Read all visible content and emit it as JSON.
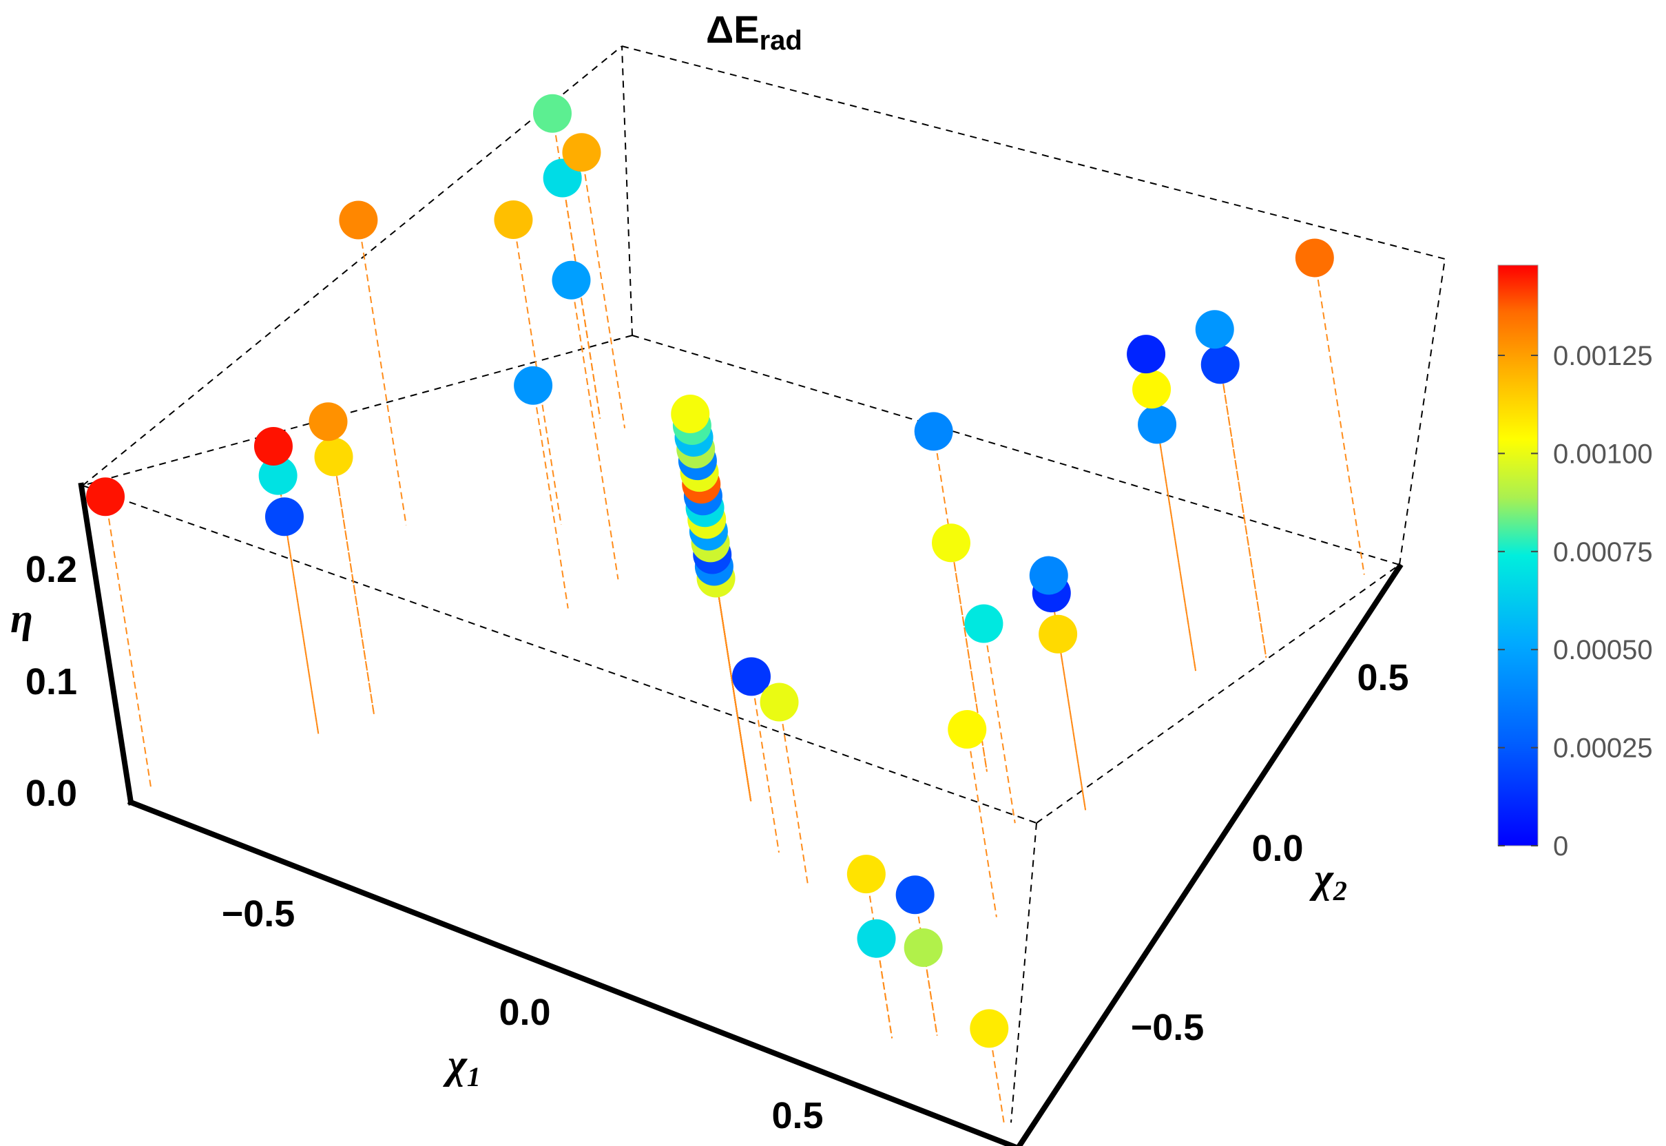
{
  "chart_data": {
    "type": "scatter",
    "title": "ΔE",
    "title_subscript": "rad",
    "xlabel": "χ",
    "xlabel_subscript": "1",
    "ylabel": "χ",
    "ylabel_subscript": "2",
    "zlabel": "η",
    "xlim": [
      -0.9,
      0.9
    ],
    "ylim": [
      -0.9,
      0.9
    ],
    "zlim": [
      0,
      0.27
    ],
    "x_ticks": [
      "−0.5",
      "0.0",
      "0.5"
    ],
    "y_ticks": [
      "−0.5",
      "0.0",
      "0.5"
    ],
    "z_ticks": [
      "0.0",
      "0.1",
      "0.2"
    ],
    "colorbar": {
      "min": 0,
      "max": 0.00148,
      "tick_labels": [
        "0",
        "0.00025",
        "0.00050",
        "0.00075",
        "0.00100",
        "0.00125"
      ]
    },
    "points": [
      {
        "x": -0.88,
        "y": -0.85,
        "z": 0.25,
        "value": 0.00146
      },
      {
        "x": -0.67,
        "y": -0.55,
        "z": 0.245,
        "value": 0.00146
      },
      {
        "x": -0.67,
        "y": -0.55,
        "z": 0.22,
        "value": 0.0007
      },
      {
        "x": -0.67,
        "y": -0.55,
        "z": 0.185,
        "value": 0.0002
      },
      {
        "x": -0.6,
        "y": -0.45,
        "z": 0.25,
        "value": 0.00128
      },
      {
        "x": -0.6,
        "y": -0.45,
        "z": 0.22,
        "value": 0.00112
      },
      {
        "x": -0.75,
        "y": 0.05,
        "z": 0.26,
        "value": 0.0013
      },
      {
        "x": -0.5,
        "y": 0.2,
        "z": 0.26,
        "value": 0.00118
      },
      {
        "x": -0.4,
        "y": 0.0,
        "z": 0.19,
        "value": 0.00045
      },
      {
        "x": -0.35,
        "y": 0.12,
        "z": 0.255,
        "value": 0.00048
      },
      {
        "x": -0.55,
        "y": 0.5,
        "z": 0.26,
        "value": 0.00082
      },
      {
        "x": -0.55,
        "y": 0.5,
        "z": 0.205,
        "value": 0.00068
      },
      {
        "x": -0.5,
        "y": 0.5,
        "z": 0.235,
        "value": 0.00122
      },
      {
        "x": 0.1,
        "y": -0.3,
        "z": 0.19,
        "value": 0.00098
      },
      {
        "x": 0.1,
        "y": -0.3,
        "z": 0.2,
        "value": 0.0004
      },
      {
        "x": 0.1,
        "y": -0.3,
        "z": 0.21,
        "value": 0.0002
      },
      {
        "x": 0.1,
        "y": -0.3,
        "z": 0.22,
        "value": 0.00095
      },
      {
        "x": 0.1,
        "y": -0.3,
        "z": 0.23,
        "value": 0.00048
      },
      {
        "x": 0.1,
        "y": -0.3,
        "z": 0.24,
        "value": 0.001
      },
      {
        "x": 0.1,
        "y": -0.3,
        "z": 0.25,
        "value": 0.00068
      },
      {
        "x": 0.1,
        "y": -0.3,
        "z": 0.26,
        "value": 0.00035
      },
      {
        "x": 0.1,
        "y": -0.3,
        "z": 0.27,
        "value": 0.00138
      },
      {
        "x": 0.1,
        "y": -0.3,
        "z": 0.28,
        "value": 0.001
      },
      {
        "x": 0.1,
        "y": -0.3,
        "z": 0.29,
        "value": 0.00038
      },
      {
        "x": 0.1,
        "y": -0.3,
        "z": 0.3,
        "value": 0.0009
      },
      {
        "x": 0.1,
        "y": -0.3,
        "z": 0.31,
        "value": 0.00058
      },
      {
        "x": 0.1,
        "y": -0.3,
        "z": 0.32,
        "value": 0.0008
      },
      {
        "x": 0.1,
        "y": -0.3,
        "z": 0.33,
        "value": 0.00102
      },
      {
        "x": 0.2,
        "y": -0.4,
        "z": 0.15,
        "value": 0.00015
      },
      {
        "x": 0.28,
        "y": -0.45,
        "z": 0.155,
        "value": 0.001
      },
      {
        "x": 0.58,
        "y": -0.75,
        "z": 0.14,
        "value": 0.0011
      },
      {
        "x": 0.58,
        "y": -0.75,
        "z": 0.085,
        "value": 0.00068
      },
      {
        "x": 0.65,
        "y": -0.7,
        "z": 0.12,
        "value": 0.00022
      },
      {
        "x": 0.65,
        "y": -0.7,
        "z": 0.075,
        "value": 0.0009
      },
      {
        "x": 0.62,
        "y": -0.35,
        "z": 0.16,
        "value": 0.00105
      },
      {
        "x": 0.85,
        "y": -0.85,
        "z": 0.08,
        "value": 0.00108
      },
      {
        "x": 0.45,
        "y": 0.0,
        "z": 0.29,
        "value": 0.0004
      },
      {
        "x": 0.45,
        "y": 0.0,
        "z": 0.195,
        "value": 0.00102
      },
      {
        "x": 0.55,
        "y": -0.1,
        "z": 0.17,
        "value": 0.00072
      },
      {
        "x": 0.65,
        "y": 0.0,
        "z": 0.2,
        "value": 0.0004
      },
      {
        "x": 0.65,
        "y": 0.0,
        "z": 0.185,
        "value": 0.00012
      },
      {
        "x": 0.65,
        "y": 0.0,
        "z": 0.15,
        "value": 0.00112
      },
      {
        "x": 0.68,
        "y": 0.45,
        "z": 0.27,
        "value": 0.0001
      },
      {
        "x": 0.68,
        "y": 0.45,
        "z": 0.24,
        "value": 0.00105
      },
      {
        "x": 0.68,
        "y": 0.45,
        "z": 0.21,
        "value": 0.00042
      },
      {
        "x": 0.78,
        "y": 0.55,
        "z": 0.28,
        "value": 0.00045
      },
      {
        "x": 0.78,
        "y": 0.55,
        "z": 0.25,
        "value": 0.00018
      },
      {
        "x": 0.85,
        "y": 0.85,
        "z": 0.27,
        "value": 0.00135
      }
    ]
  }
}
